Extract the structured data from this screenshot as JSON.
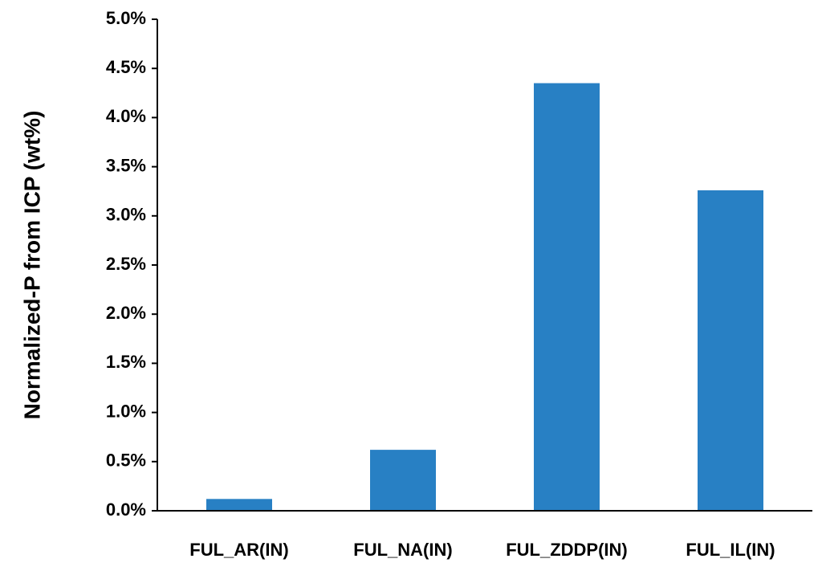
{
  "chart_data": {
    "type": "bar",
    "y_label": "Normalized-P from  ICP (wt%)",
    "categories": [
      "FUL_AR(IN)",
      "FUL_NA(IN)",
      "FUL_ZDDP(IN)",
      "FUL_IL(IN)"
    ],
    "values": [
      0.12,
      0.62,
      4.35,
      3.26
    ],
    "color": "#2880c4",
    "ylim": [
      0,
      5
    ],
    "yticks": [
      {
        "value": 0,
        "label": "0.0%"
      },
      {
        "value": 0.5,
        "label": "0.5%"
      },
      {
        "value": 1,
        "label": "1.0%"
      },
      {
        "value": 1.5,
        "label": "1.5%"
      },
      {
        "value": 2,
        "label": "2.0%"
      },
      {
        "value": 2.5,
        "label": "2.5%"
      },
      {
        "value": 3,
        "label": "3.0%"
      },
      {
        "value": 3.5,
        "label": "3.5%"
      },
      {
        "value": 4,
        "label": "4.0%"
      },
      {
        "value": 4.5,
        "label": "4.5%"
      },
      {
        "value": 5,
        "label": "5.0%"
      }
    ],
    "grid": false
  }
}
